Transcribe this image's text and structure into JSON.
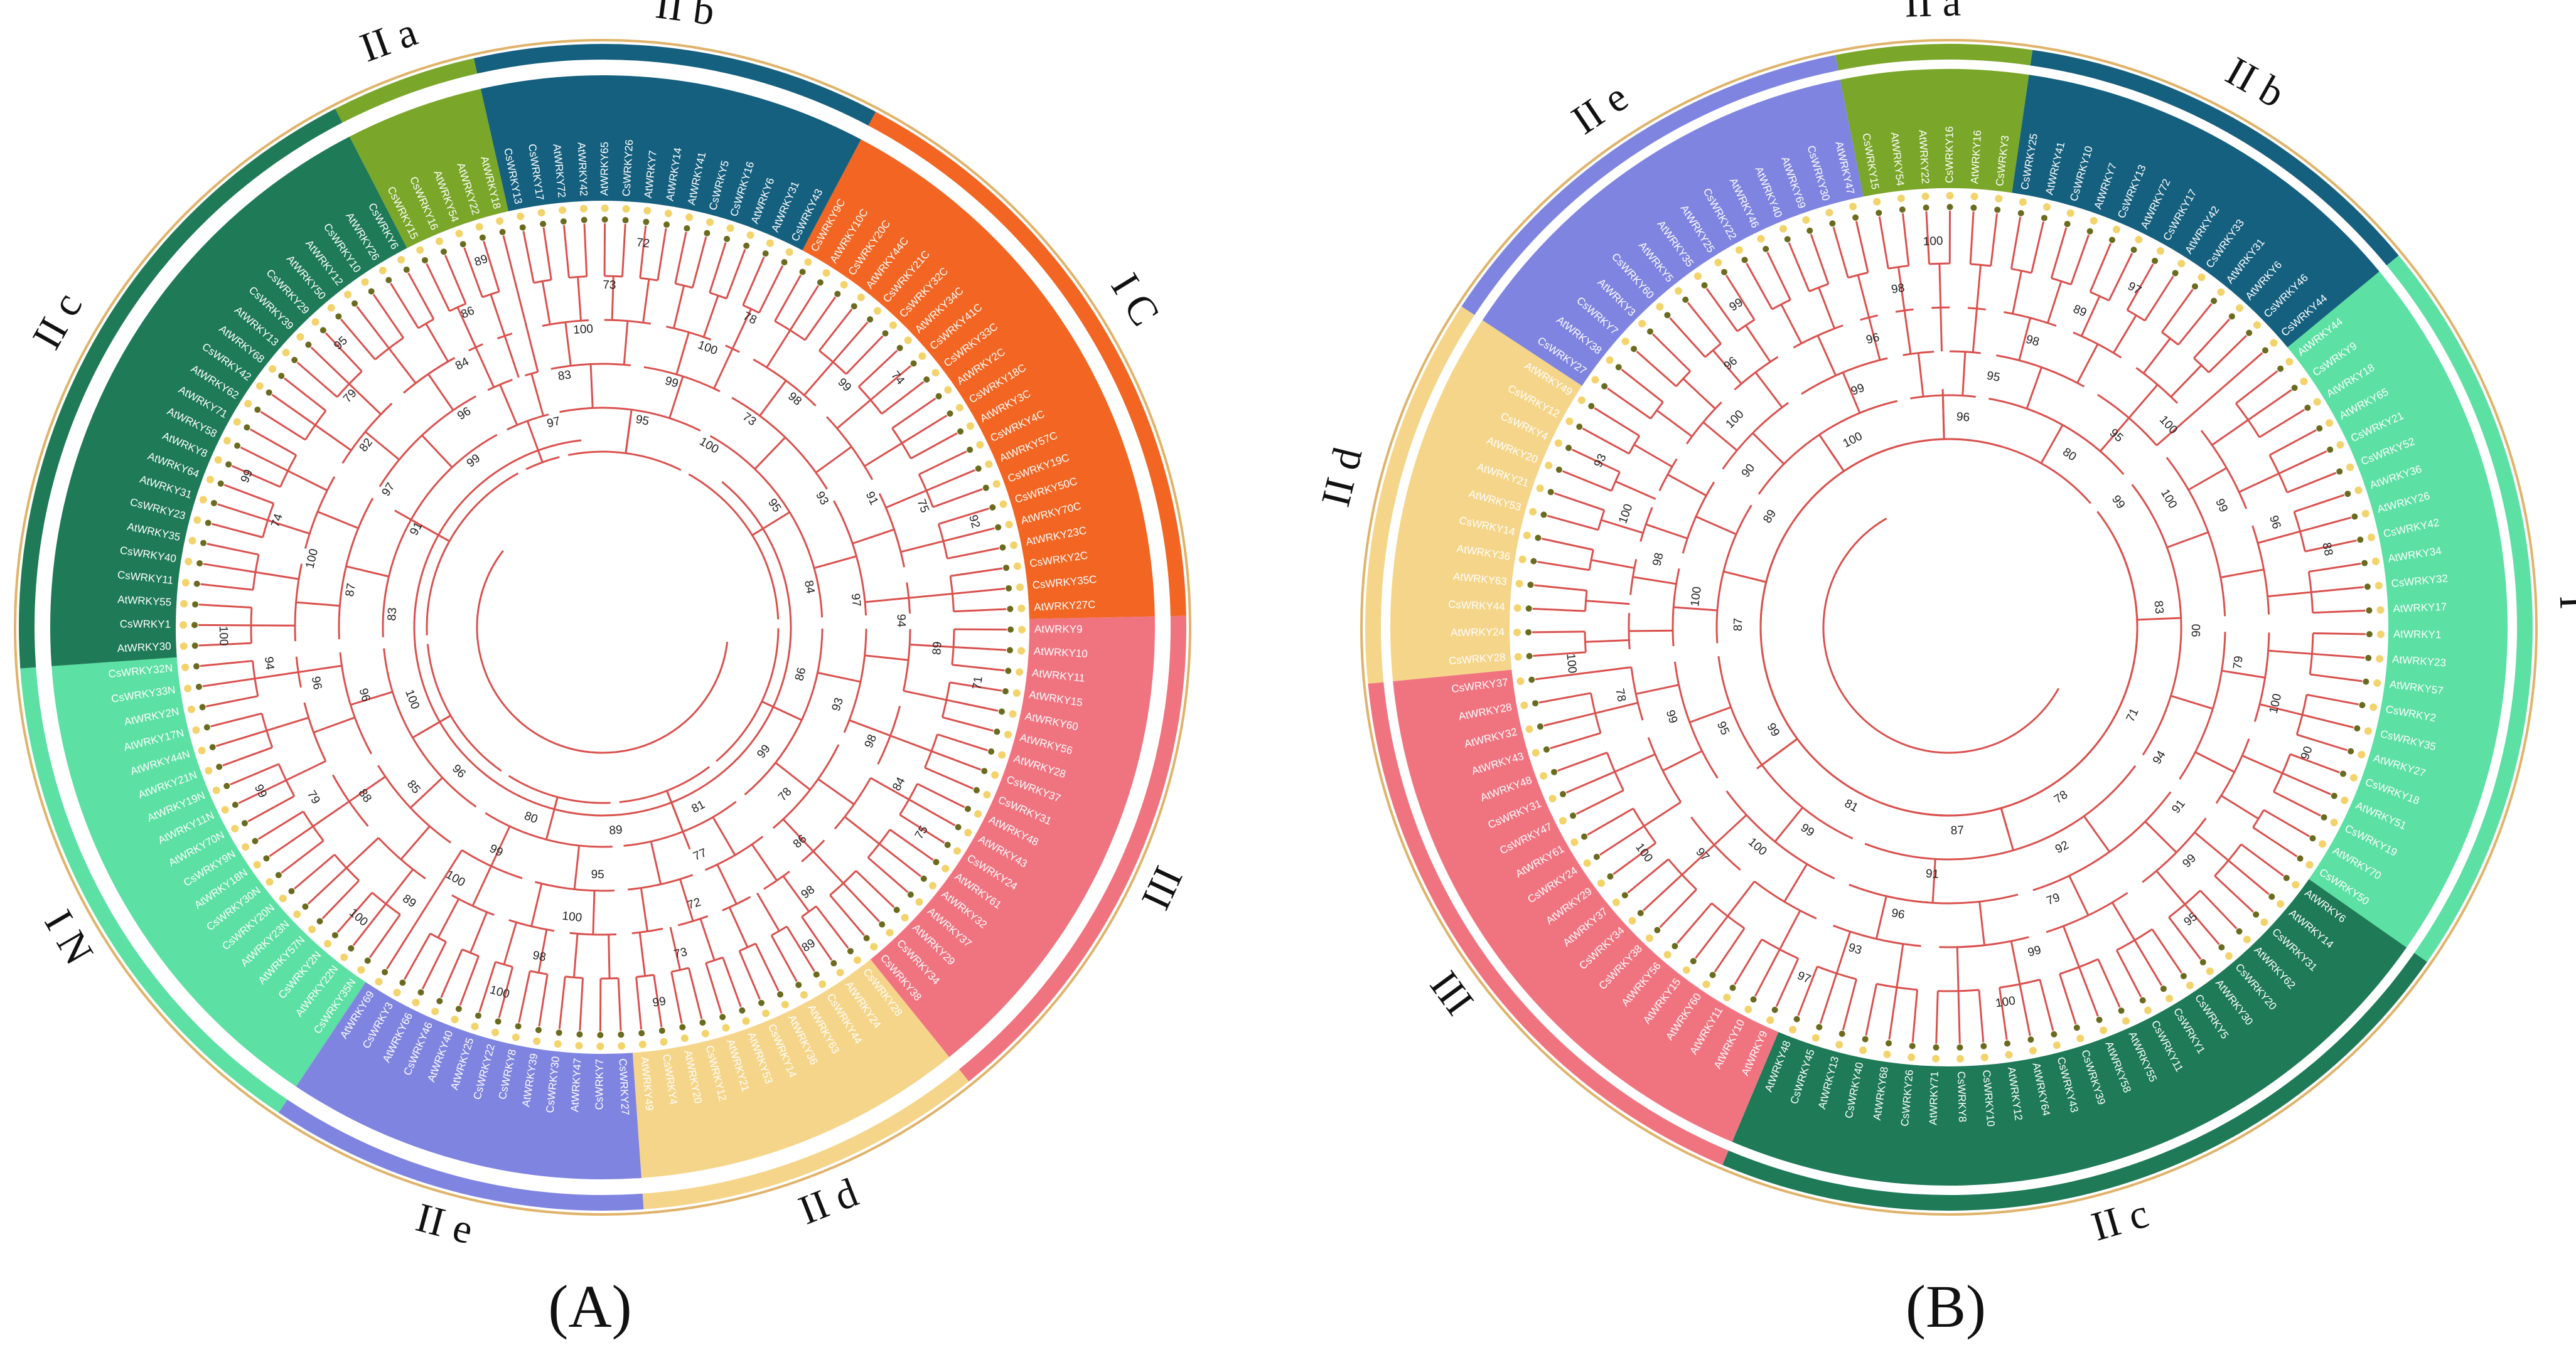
{
  "panels": [
    {
      "id": "A",
      "label": "(A)",
      "clades": [
        {
          "name": "I C",
          "color": "#f26522",
          "ring": "#f26522",
          "leaves": [
            "CsWRKY9C",
            "AtWRKY10C",
            "CsWRKY20C",
            "AtWRKY44C",
            "CsWRKY21C",
            "CsWRKY32C",
            "AtWRKY34C",
            "CsWRKY41C",
            "CsWRKY33C",
            "AtWRKY2C",
            "CsWRKY18C",
            "AtWRKY3C",
            "CsWRKY4C",
            "AtWRKY57C",
            "CsWRKY19C",
            "CsWRKY50C",
            "AtWRKY70C",
            "AtWRKY23C",
            "CsWRKY2C",
            "CsWRKY35C",
            "AtWRKY27C"
          ]
        },
        {
          "name": "III",
          "color": "#f07480",
          "ring": "#f07480",
          "leaves": [
            "AtWRKY9",
            "AtWRKY10",
            "AtWRKY11",
            "AtWRKY15",
            "AtWRKY60",
            "AtWRKY56",
            "AtWRKY28",
            "CsWRKY37",
            "CsWRKY31",
            "AtWRKY48",
            "AtWRKY43",
            "CsWRKY24",
            "AtWRKY61",
            "AtWRKY32",
            "AtWRKY37",
            "AtWRKY29",
            "CsWRKY34",
            "CsWRKY38"
          ]
        },
        {
          "name": "II d",
          "color": "#f5d58a",
          "ring": "#f5d58a",
          "leaves": [
            "CsWRKY28",
            "AtWRKY24",
            "CsWRKY44",
            "AtWRKY63",
            "AtWRKY36",
            "CsWRKY14",
            "AtWRKY53",
            "AtWRKY21",
            "CsWRKY12",
            "AtWRKY20",
            "CsWRKY4",
            "AtWRKY49"
          ]
        },
        {
          "name": "II e",
          "color": "#7f84e0",
          "ring": "#7f84e0",
          "leaves": [
            "CsWRKY27",
            "CsWRKY7",
            "AtWRKY47",
            "CsWRKY30",
            "AtWRKY39",
            "CsWRKY8",
            "CsWRKY22",
            "AtWRKY25",
            "AtWRKY40",
            "CsWRKY46",
            "AtWRKY66",
            "CsWRKY3",
            "AtWRKY69"
          ]
        },
        {
          "name": "I N",
          "color": "#5ce0a3",
          "ring": "#5ce0a3",
          "leaves": [
            "CsWRKY35N",
            "AtWRKY22N",
            "CsWRKY2N",
            "AtWRKY57N",
            "AtWRKY23N",
            "CsWRKY20N",
            "CsWRKY30N",
            "AtWRKY18N",
            "CsWRKY9N",
            "AtWRKY70N",
            "AtWRKY11N",
            "AtWRKY19N",
            "AtWRKY21N",
            "AtWRKY44N",
            "AtWRKY17N",
            "AtWRKY2N",
            "CsWRKY33N",
            "CsWRKY32N"
          ]
        },
        {
          "name": "II c",
          "color": "#1e7a57",
          "ring": "#1e7a57",
          "leaves": [
            "AtWRKY30",
            "CsWRKY1",
            "AtWRKY55",
            "CsWRKY11",
            "CsWRKY40",
            "AtWRKY35",
            "CsWRKY23",
            "AtWRKY31",
            "AtWRKY64",
            "AtWRKY8",
            "AtWRKY58",
            "AtWRKY71",
            "AtWRKY62",
            "CsWRKY42",
            "AtWRKY68",
            "AtWRKY13",
            "CsWRKY39",
            "CsWRKY29",
            "AtWRKY50",
            "AtWRKY12",
            "CsWRKY10",
            "AtWRKY26",
            "CsWRKY6"
          ]
        },
        {
          "name": "II a",
          "color": "#7aa62a",
          "ring": "#7aa62a",
          "leaves": [
            "CsWRKY15",
            "CsWRKY16",
            "AtWRKY54",
            "AtWRKY22",
            "AtWRKY18"
          ]
        },
        {
          "name": "II b",
          "color": "#16607f",
          "ring": "#16607f",
          "leaves": [
            "CsWRKY13",
            "CsWRKY17",
            "AtWRKY72",
            "AtWRKY42",
            "AtWRKY65",
            "CsWRKY26",
            "AtWRKY7",
            "AtWRKY14",
            "AtWRKY41",
            "CsWRKY5",
            "CsWRKY16",
            "AtWRKY6",
            "AtWRKY31",
            "CsWRKY43"
          ]
        }
      ],
      "support_values": [
        "100",
        "73",
        "98",
        "99",
        "74",
        "95",
        "93",
        "91",
        "75",
        "92",
        "84",
        "97",
        "94",
        "89",
        "71",
        "86",
        "93",
        "98",
        "84",
        "75",
        "99",
        "78",
        "86",
        "98",
        "89",
        "81",
        "77",
        "72",
        "73",
        "99",
        "89",
        "95",
        "100",
        "98",
        "100",
        "80",
        "99",
        "100",
        "89",
        "100",
        "96",
        "85",
        "88",
        "79",
        "99",
        "100",
        "96",
        "96",
        "94",
        "100",
        "83",
        "87",
        "100",
        "74",
        "99",
        "91",
        "97",
        "82",
        "79",
        "95",
        "99",
        "96",
        "84",
        "86",
        "89",
        "97",
        "83",
        "100",
        "73",
        "72",
        "95",
        "99",
        "100",
        "78"
      ]
    },
    {
      "id": "B",
      "label": "(B)",
      "clades": [
        {
          "name": "I",
          "color": "#5ce0a3",
          "ring": "#5ce0a3",
          "leaves": [
            "AtWRKY44",
            "CsWRKY9",
            "AtWRKY18",
            "AtWRKY65",
            "CsWRKY21",
            "CsWRKY52",
            "AtWRKY36",
            "AtWRKY26",
            "CsWRKY42",
            "AtWRKY34",
            "CsWRKY32",
            "AtWRKY17",
            "AtWRKY1",
            "AtWRKY23",
            "AtWRKY57",
            "CsWRKY2",
            "CsWRKY35",
            "AtWRKY27",
            "CsWRKY18",
            "AtWRKY51",
            "CsWRKY19",
            "AtWRKY70",
            "CsWRKY50"
          ]
        },
        {
          "name": "II c",
          "color": "#1e7a57",
          "ring": "#1e7a57",
          "leaves": [
            "AtWRKY6",
            "AtWRKY14",
            "CsWRKY31",
            "AtWRKY62",
            "CsWRKY20",
            "AtWRKY30",
            "CsWRKY5",
            "CsWRKY1",
            "CsWRKY11",
            "AtWRKY55",
            "AtWRKY58",
            "CsWRKY39",
            "CsWRKY43",
            "AtWRKY64",
            "AtWRKY12",
            "CsWRKY10",
            "CsWRKY8",
            "AtWRKY71",
            "CsWRKY26",
            "AtWRKY68",
            "CsWRKY40",
            "AtWRKY13",
            "CsWRKY45",
            "AtWRKY48"
          ]
        },
        {
          "name": "III",
          "color": "#f07480",
          "ring": "#f07480",
          "leaves": [
            "AtWRKY9",
            "AtWRKY10",
            "AtWRKY11",
            "AtWRKY60",
            "AtWRKY15",
            "AtWRKY56",
            "CsWRKY38",
            "CsWRKY34",
            "AtWRKY37",
            "AtWRKY29",
            "CsWRKY24",
            "AtWRKY61",
            "CsWRKY47",
            "CsWRKY31",
            "AtWRKY48",
            "AtWRKY43",
            "AtWRKY32",
            "AtWRKY28",
            "CsWRKY37"
          ]
        },
        {
          "name": "II d",
          "color": "#f5d58a",
          "ring": "#f5d58a",
          "leaves": [
            "CsWRKY28",
            "AtWRKY24",
            "CsWRKY44",
            "AtWRKY63",
            "AtWRKY36",
            "CsWRKY14",
            "AtWRKY53",
            "AtWRKY21",
            "AtWRKY20",
            "CsWRKY4",
            "CsWRKY12",
            "AtWRKY49"
          ]
        },
        {
          "name": "II e",
          "color": "#7f84e0",
          "ring": "#7f84e0",
          "leaves": [
            "CsWRKY27",
            "AtWRKY38",
            "CsWRKY7",
            "AtWRKY3",
            "CsWRKY60",
            "AtWRKY5",
            "AtWRKY35",
            "AtWRKY25",
            "CsWRKY22",
            "AtWRKY46",
            "AtWRKY40",
            "AtWRKY69",
            "CsWRKY30",
            "AtWRKY47"
          ]
        },
        {
          "name": "II a",
          "color": "#7aa62a",
          "ring": "#7aa62a",
          "leaves": [
            "CsWRKY15",
            "AtWRKY54",
            "AtWRKY22",
            "CsWRKY16",
            "AtWRKY16",
            "CsWRKY3"
          ]
        },
        {
          "name": "II b",
          "color": "#16607f",
          "ring": "#16607f",
          "leaves": [
            "CsWRKY25",
            "AtWRKY41",
            "CsWRKY10",
            "AtWRKY7",
            "CsWRKY13",
            "AtWRKY72",
            "CsWRKY17",
            "AtWRKY42",
            "CsWRKY33",
            "AtWRKY31",
            "AtWRKY6",
            "CsWRKY46",
            "CsWRKY44"
          ]
        }
      ],
      "support_values": [
        "99",
        "100",
        "99",
        "96",
        "88",
        "83",
        "90",
        "79",
        "100",
        "90",
        "71",
        "94",
        "91",
        "99",
        "95",
        "78",
        "92",
        "79",
        "99",
        "100",
        "87",
        "91",
        "96",
        "93",
        "97",
        "81",
        "99",
        "100",
        "97",
        "100",
        "99",
        "95",
        "99",
        "78",
        "100",
        "87",
        "100",
        "98",
        "100",
        "93",
        "89",
        "90",
        "100",
        "96",
        "99",
        "100",
        "99",
        "96",
        "98",
        "100",
        "96",
        "95",
        "98",
        "89",
        "97",
        "80",
        "95",
        "100"
      ]
    }
  ]
}
